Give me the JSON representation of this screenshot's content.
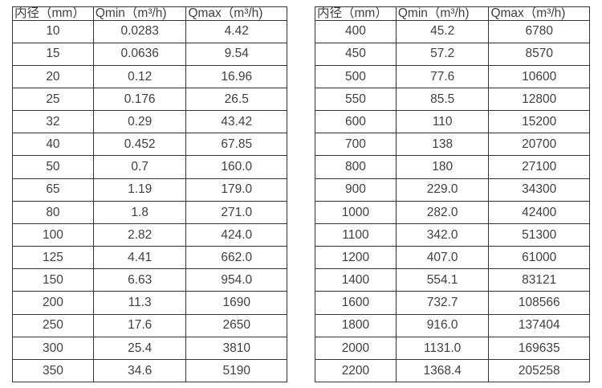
{
  "page": {
    "background": "#ffffff",
    "border_color": "#333333",
    "text_color": "#404040"
  },
  "tables": [
    {
      "name": "flow-spec-table-small-diameters",
      "headers": [
        "内径（mm）",
        "Qmin（m³/h)",
        "Qmax（m³/h)"
      ],
      "rows": [
        [
          "10",
          "0.0283",
          "4.42"
        ],
        [
          "15",
          "0.0636",
          "9.54"
        ],
        [
          "20",
          "0.12",
          "16.96"
        ],
        [
          "25",
          "0.176",
          "26.5"
        ],
        [
          "32",
          "0.29",
          "43.42"
        ],
        [
          "40",
          "0.452",
          "67.85"
        ],
        [
          "50",
          "0.7",
          "160.0"
        ],
        [
          "65",
          "1.19",
          "179.0"
        ],
        [
          "80",
          "1.8",
          "271.0"
        ],
        [
          "100",
          "2.82",
          "424.0"
        ],
        [
          "125",
          "4.41",
          "662.0"
        ],
        [
          "150",
          "6.63",
          "954.0"
        ],
        [
          "200",
          "11.3",
          "1690"
        ],
        [
          "250",
          "17.6",
          "2650"
        ],
        [
          "300",
          "25.4",
          "3810"
        ],
        [
          "350",
          "34.6",
          "5190"
        ]
      ]
    },
    {
      "name": "flow-spec-table-large-diameters",
      "headers": [
        "内径（mm）",
        "Qmin（m³/h)",
        "Qmax（m³/h)"
      ],
      "rows": [
        [
          "400",
          "45.2",
          "6780"
        ],
        [
          "450",
          "57.2",
          "8570"
        ],
        [
          "500",
          "77.6",
          "10600"
        ],
        [
          "550",
          "85.5",
          "12800"
        ],
        [
          "600",
          "110",
          "15200"
        ],
        [
          "700",
          "138",
          "20700"
        ],
        [
          "800",
          "180",
          "27100"
        ],
        [
          "900",
          "229.0",
          "34300"
        ],
        [
          "1000",
          "282.0",
          "42400"
        ],
        [
          "1100",
          "342.0",
          "51300"
        ],
        [
          "1200",
          "407.0",
          "61000"
        ],
        [
          "1400",
          "554.1",
          "83121"
        ],
        [
          "1600",
          "732.7",
          "108566"
        ],
        [
          "1800",
          "916.0",
          "137404"
        ],
        [
          "2000",
          "1131.0",
          "169635"
        ],
        [
          "2200",
          "1368.4",
          "205258"
        ]
      ]
    }
  ]
}
